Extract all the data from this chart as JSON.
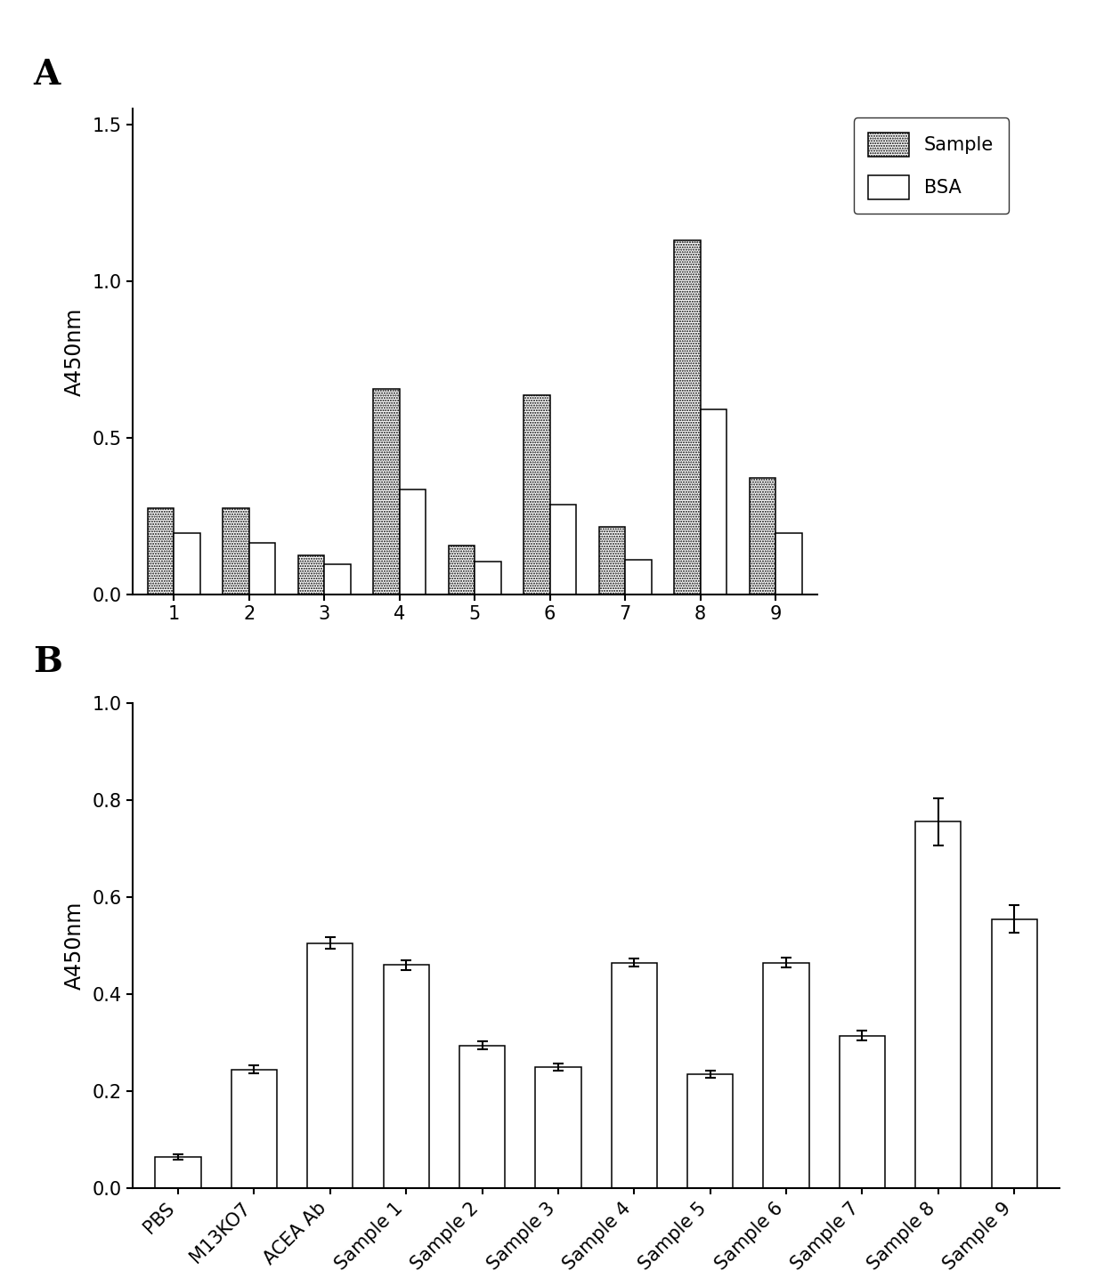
{
  "panel_A": {
    "categories": [
      "1",
      "2",
      "3",
      "4",
      "5",
      "6",
      "7",
      "8",
      "9"
    ],
    "sample_values": [
      0.275,
      0.275,
      0.125,
      0.655,
      0.155,
      0.635,
      0.215,
      1.13,
      0.37
    ],
    "bsa_values": [
      0.195,
      0.165,
      0.095,
      0.335,
      0.105,
      0.285,
      0.11,
      0.59,
      0.195
    ],
    "ylabel": "A450nm",
    "ylim": [
      0.0,
      1.55
    ],
    "yticks": [
      0.0,
      0.5,
      1.0,
      1.5
    ],
    "bar_width": 0.35
  },
  "panel_B": {
    "categories": [
      "PBS",
      "M13KO7",
      "ACEA Ab",
      "Sample 1",
      "Sample 2",
      "Sample 3",
      "Sample 4",
      "Sample 5",
      "Sample 6",
      "Sample 7",
      "Sample 8",
      "Sample 9"
    ],
    "values": [
      0.065,
      0.245,
      0.505,
      0.46,
      0.295,
      0.25,
      0.465,
      0.235,
      0.465,
      0.315,
      0.755,
      0.555
    ],
    "errors": [
      0.005,
      0.008,
      0.012,
      0.01,
      0.008,
      0.008,
      0.008,
      0.007,
      0.01,
      0.01,
      0.048,
      0.028
    ],
    "ylabel": "A450nm",
    "ylim": [
      0.0,
      1.0
    ],
    "yticks": [
      0.0,
      0.2,
      0.4,
      0.6,
      0.8,
      1.0
    ],
    "bar_width": 0.6
  },
  "label_A": "A",
  "label_B": "B",
  "legend_sample_label": "Sample",
  "legend_bsa_label": "BSA",
  "bg_color": "#ffffff",
  "font_size_tick": 15,
  "font_size_ylabel": 17,
  "font_size_legend": 15,
  "font_size_panel": 28
}
